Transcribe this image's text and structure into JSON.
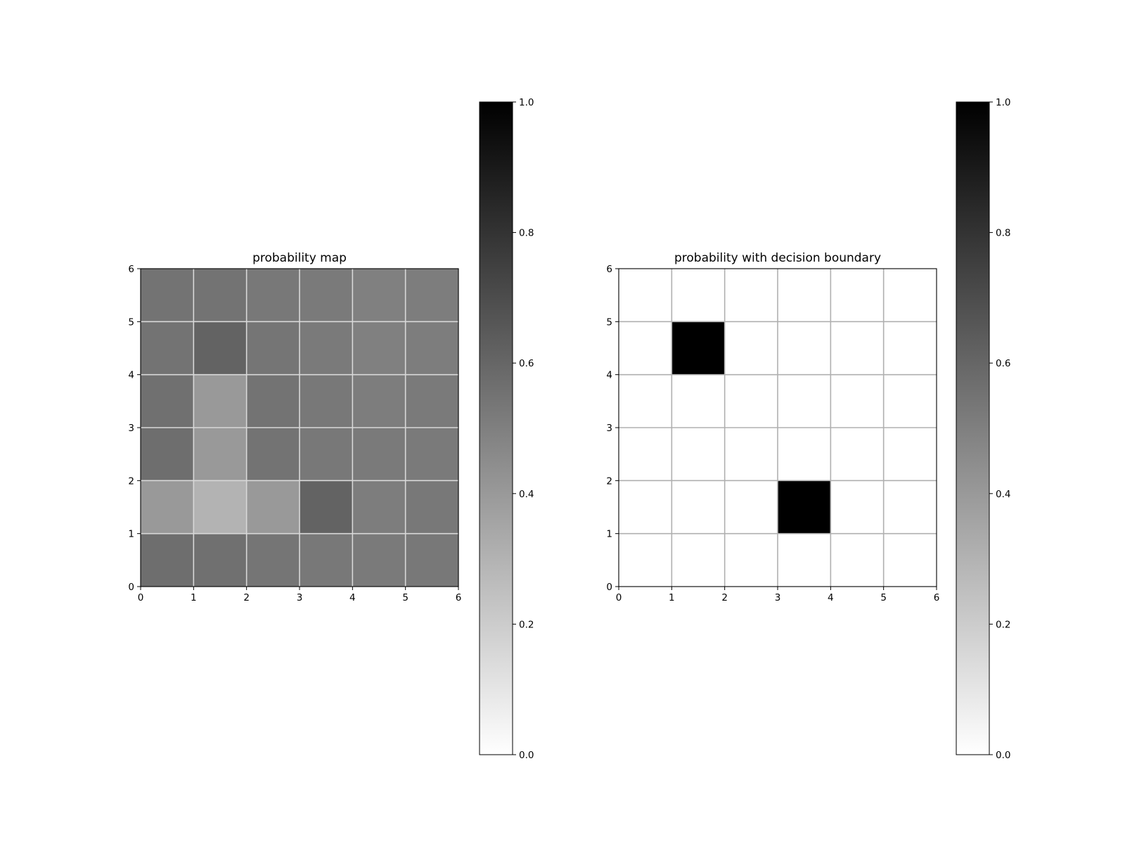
{
  "chart_data": [
    {
      "type": "heatmap",
      "title": "probability map",
      "xlabel": "",
      "ylabel": "",
      "xlim": [
        0,
        6
      ],
      "ylim": [
        0,
        6
      ],
      "xticks": [
        "0",
        "1",
        "2",
        "3",
        "4",
        "5",
        "6"
      ],
      "yticks": [
        "0",
        "1",
        "2",
        "3",
        "4",
        "5",
        "6"
      ],
      "grid": true,
      "cmap": "gray_r",
      "vmin": 0.0,
      "vmax": 1.0,
      "rows_y_top_to_bottom": [
        [
          0.55,
          0.55,
          0.53,
          0.52,
          0.5,
          0.51
        ],
        [
          0.55,
          0.61,
          0.54,
          0.52,
          0.5,
          0.51
        ],
        [
          0.56,
          0.4,
          0.55,
          0.53,
          0.51,
          0.52
        ],
        [
          0.57,
          0.4,
          0.55,
          0.53,
          0.52,
          0.52
        ],
        [
          0.4,
          0.3,
          0.4,
          0.61,
          0.51,
          0.53
        ],
        [
          0.57,
          0.56,
          0.54,
          0.53,
          0.52,
          0.53
        ]
      ],
      "colorbar": {
        "ticks": [
          "0.0",
          "0.2",
          "0.4",
          "0.6",
          "0.8",
          "1.0"
        ],
        "tick_values": [
          0.0,
          0.2,
          0.4,
          0.6,
          0.8,
          1.0
        ]
      }
    },
    {
      "type": "heatmap",
      "title": "probability with decision boundary",
      "xlabel": "",
      "ylabel": "",
      "xlim": [
        0,
        6
      ],
      "ylim": [
        0,
        6
      ],
      "xticks": [
        "0",
        "1",
        "2",
        "3",
        "4",
        "5",
        "6"
      ],
      "yticks": [
        "0",
        "1",
        "2",
        "3",
        "4",
        "5",
        "6"
      ],
      "grid": true,
      "cmap": "gray_r",
      "vmin": 0.0,
      "vmax": 1.0,
      "rows_y_top_to_bottom": [
        [
          0,
          0,
          0,
          0,
          0,
          0
        ],
        [
          0,
          1,
          0,
          0,
          0,
          0
        ],
        [
          0,
          0,
          0,
          0,
          0,
          0
        ],
        [
          0,
          0,
          0,
          0,
          0,
          0
        ],
        [
          0,
          0,
          0,
          1,
          0,
          0
        ],
        [
          0,
          0,
          0,
          0,
          0,
          0
        ]
      ],
      "colorbar": {
        "ticks": [
          "0.0",
          "0.2",
          "0.4",
          "0.6",
          "0.8",
          "1.0"
        ],
        "tick_values": [
          0.0,
          0.2,
          0.4,
          0.6,
          0.8,
          1.0
        ]
      }
    }
  ]
}
